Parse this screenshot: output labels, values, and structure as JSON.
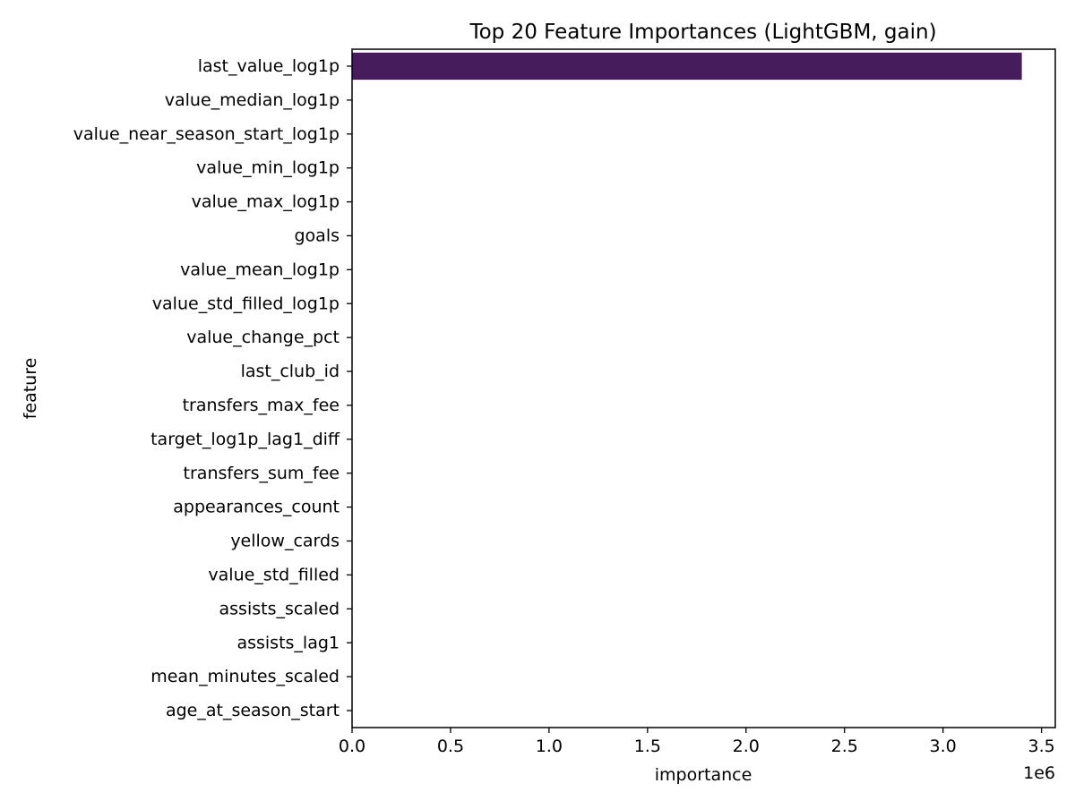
{
  "chart_data": {
    "type": "bar",
    "orientation": "horizontal",
    "title": "Top 20 Feature Importances (LightGBM, gain)",
    "xlabel": "importance",
    "ylabel": "feature",
    "x_offset_label": "1e6",
    "x_tick_multiplier": 1000000,
    "xlim": [
      0,
      3570000
    ],
    "x_ticks": [
      0,
      500000,
      1000000,
      1500000,
      2000000,
      2500000,
      3000000,
      3500000
    ],
    "x_tick_labels": [
      "0.0",
      "0.5",
      "1.0",
      "1.5",
      "2.0",
      "2.5",
      "3.0",
      "3.5"
    ],
    "grid": false,
    "legend": "none",
    "categories": [
      "last_value_log1p",
      "value_median_log1p",
      "value_near_season_start_log1p",
      "value_min_log1p",
      "value_max_log1p",
      "goals",
      "value_mean_log1p",
      "value_std_filled_log1p",
      "value_change_pct",
      "last_club_id",
      "transfers_max_fee",
      "target_log1p_lag1_diff",
      "transfers_sum_fee",
      "appearances_count",
      "yellow_cards",
      "value_std_filled",
      "assists_scaled",
      "assists_lag1",
      "mean_minutes_scaled",
      "age_at_season_start"
    ],
    "values": [
      3400000,
      2000,
      1800,
      1500,
      1300,
      1200,
      1100,
      1000,
      900,
      800,
      700,
      650,
      600,
      550,
      500,
      450,
      400,
      350,
      300,
      250
    ],
    "bar_colors": [
      "#461c5c",
      "#48196b",
      "#472a7a",
      "#443a83",
      "#3e4a89",
      "#38588c",
      "#32658e",
      "#2c728e",
      "#277f8e",
      "#228b8d",
      "#1f988b",
      "#22a785",
      "#2db27d",
      "#40bd72",
      "#56c667",
      "#6ece58",
      "#8bd646",
      "#a8db34",
      "#c5e021",
      "#e4e419"
    ]
  }
}
